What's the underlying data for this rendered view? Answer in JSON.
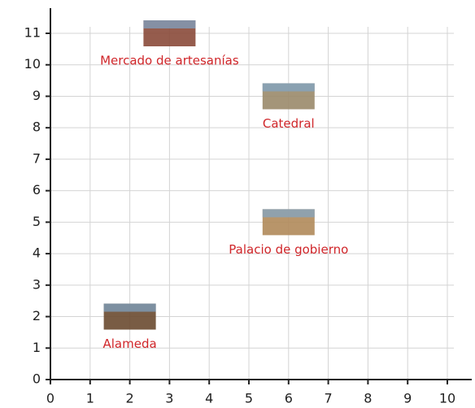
{
  "chart_data": {
    "type": "scatter",
    "x": [
      3,
      6,
      6,
      2
    ],
    "values": [
      11,
      9,
      5,
      2
    ],
    "point_labels": [
      "Mercado de artesanías",
      "Catedral",
      "Palacio de gobierno",
      "Alameda"
    ],
    "point_colors": [
      "#8a4a3a",
      "#9a8a6a",
      "#b08a5a",
      "#6a4a30"
    ],
    "label_color": "#d0262a",
    "xlim": [
      0,
      10
    ],
    "ylim": [
      0,
      11
    ],
    "xticks": [
      0,
      1,
      2,
      3,
      4,
      5,
      6,
      7,
      8,
      9,
      10
    ],
    "yticks": [
      0,
      1,
      2,
      3,
      4,
      5,
      6,
      7,
      8,
      9,
      10,
      11
    ],
    "grid": true
  }
}
